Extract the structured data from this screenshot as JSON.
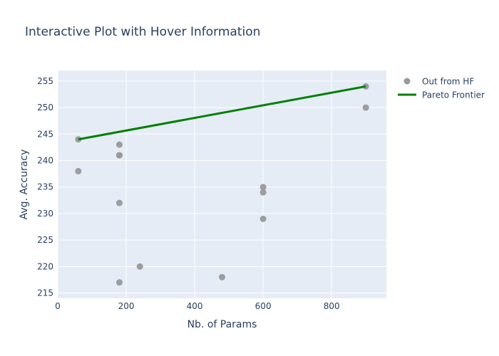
{
  "chart_data": {
    "type": "scatter",
    "title": "Interactive Plot with Hover Information",
    "xlabel": "Nb. of Params",
    "ylabel": "Avg. Accuracy",
    "xlim": [
      0,
      960
    ],
    "ylim": [
      214,
      257
    ],
    "xticks": [
      0,
      200,
      400,
      600,
      800
    ],
    "yticks": [
      215,
      220,
      225,
      230,
      235,
      240,
      245,
      250,
      255
    ],
    "grid": true,
    "legend_position": "top-right",
    "series": [
      {
        "name": "Out from HF",
        "mode": "markers",
        "color": "#999999",
        "points": [
          {
            "x": 60,
            "y": 244
          },
          {
            "x": 60,
            "y": 238
          },
          {
            "x": 180,
            "y": 243
          },
          {
            "x": 180,
            "y": 241
          },
          {
            "x": 180,
            "y": 241
          },
          {
            "x": 180,
            "y": 232
          },
          {
            "x": 180,
            "y": 217
          },
          {
            "x": 240,
            "y": 220
          },
          {
            "x": 480,
            "y": 218
          },
          {
            "x": 600,
            "y": 235
          },
          {
            "x": 600,
            "y": 234
          },
          {
            "x": 600,
            "y": 229
          },
          {
            "x": 900,
            "y": 254
          },
          {
            "x": 900,
            "y": 250
          }
        ]
      },
      {
        "name": "Pareto Frontier",
        "mode": "line",
        "color": "#008000",
        "points": [
          {
            "x": 60,
            "y": 244
          },
          {
            "x": 900,
            "y": 254
          }
        ]
      }
    ]
  }
}
